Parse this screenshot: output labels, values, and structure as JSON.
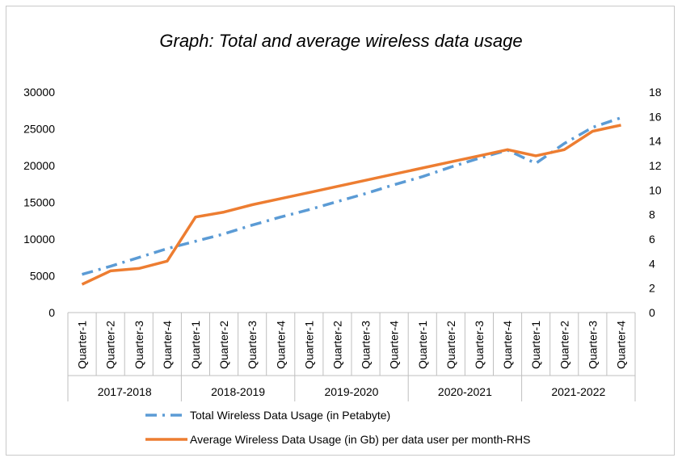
{
  "chart_data": {
    "type": "line",
    "title": "Graph: Total and average wireless data usage",
    "groups": [
      "2017-2018",
      "2018-2019",
      "2019-2020",
      "2020-2021",
      "2021-2022"
    ],
    "quarters": [
      "Quarter-1",
      "Quarter-2",
      "Quarter-3",
      "Quarter-4"
    ],
    "y_left": {
      "min": 0,
      "max": 30000,
      "ticks": [
        "0",
        "5000",
        "10000",
        "15000",
        "20000",
        "25000",
        "30000"
      ]
    },
    "y_right": {
      "min": 0,
      "max": 18,
      "ticks": [
        "0",
        "2",
        "4",
        "6",
        "8",
        "10",
        "12",
        "14",
        "16",
        "18"
      ]
    },
    "grid": false,
    "legend_position": "bottom",
    "series": [
      {
        "name": "Total Wireless Data Usage (in Petabyte)",
        "axis": "left",
        "style": "dash-dot",
        "color": "#5b9bd5",
        "values": [
          5200,
          6300,
          7500,
          8700,
          9700,
          10700,
          11900,
          13000,
          14000,
          15100,
          16200,
          17400,
          18500,
          19800,
          21000,
          22100,
          20300,
          23000,
          25200,
          26500
        ]
      },
      {
        "name": "Average Wireless Data Usage (in Gb) per data user per month-RHS",
        "axis": "right",
        "style": "solid",
        "color": "#ed7d31",
        "values": [
          2.3,
          3.4,
          3.6,
          4.2,
          7.8,
          8.2,
          8.8,
          9.3,
          9.8,
          10.3,
          10.8,
          11.3,
          11.8,
          12.3,
          12.8,
          13.3,
          12.8,
          13.3,
          14.8,
          15.3
        ]
      }
    ]
  }
}
